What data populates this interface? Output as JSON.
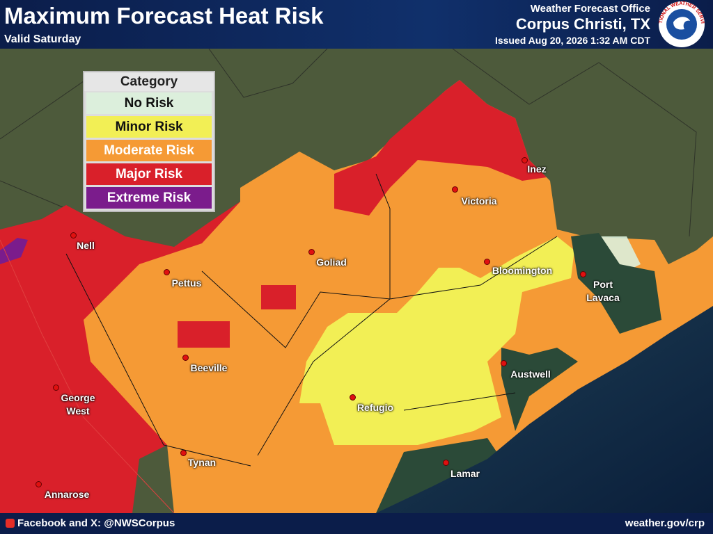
{
  "header": {
    "title": "Maximum Forecast Heat Risk",
    "subtitle": "Valid Saturday",
    "office": "Weather Forecast Office",
    "location": "Corpus Christi, TX",
    "issued": "Issued Aug 20, 2026 1:32 AM CDT",
    "logo_text": "NATIONAL WEATHER SERVICE"
  },
  "legend": {
    "title": "Category",
    "items": [
      {
        "label": "No Risk",
        "color": "#dcefdc",
        "text_color": "#111"
      },
      {
        "label": "Minor Risk",
        "color": "#f2ef55",
        "text_color": "#111"
      },
      {
        "label": "Moderate Risk",
        "color": "#f59a35",
        "text_color": "#fff"
      },
      {
        "label": "Major Risk",
        "color": "#d9202a",
        "text_color": "#fff"
      },
      {
        "label": "Extreme Risk",
        "color": "#7b1c8c",
        "text_color": "#fff"
      }
    ]
  },
  "cities": [
    "Nell",
    "Pettus",
    "Goliad",
    "Victoria",
    "Inez",
    "Bloomington",
    "Port Lavaca",
    "Beeville",
    "George West",
    "Refugio",
    "Austwell",
    "Tynan",
    "Lamar",
    "Annarose"
  ],
  "footer": {
    "social": "Facebook and X: @NWSCorpus",
    "url": "weather.gov/crp"
  }
}
